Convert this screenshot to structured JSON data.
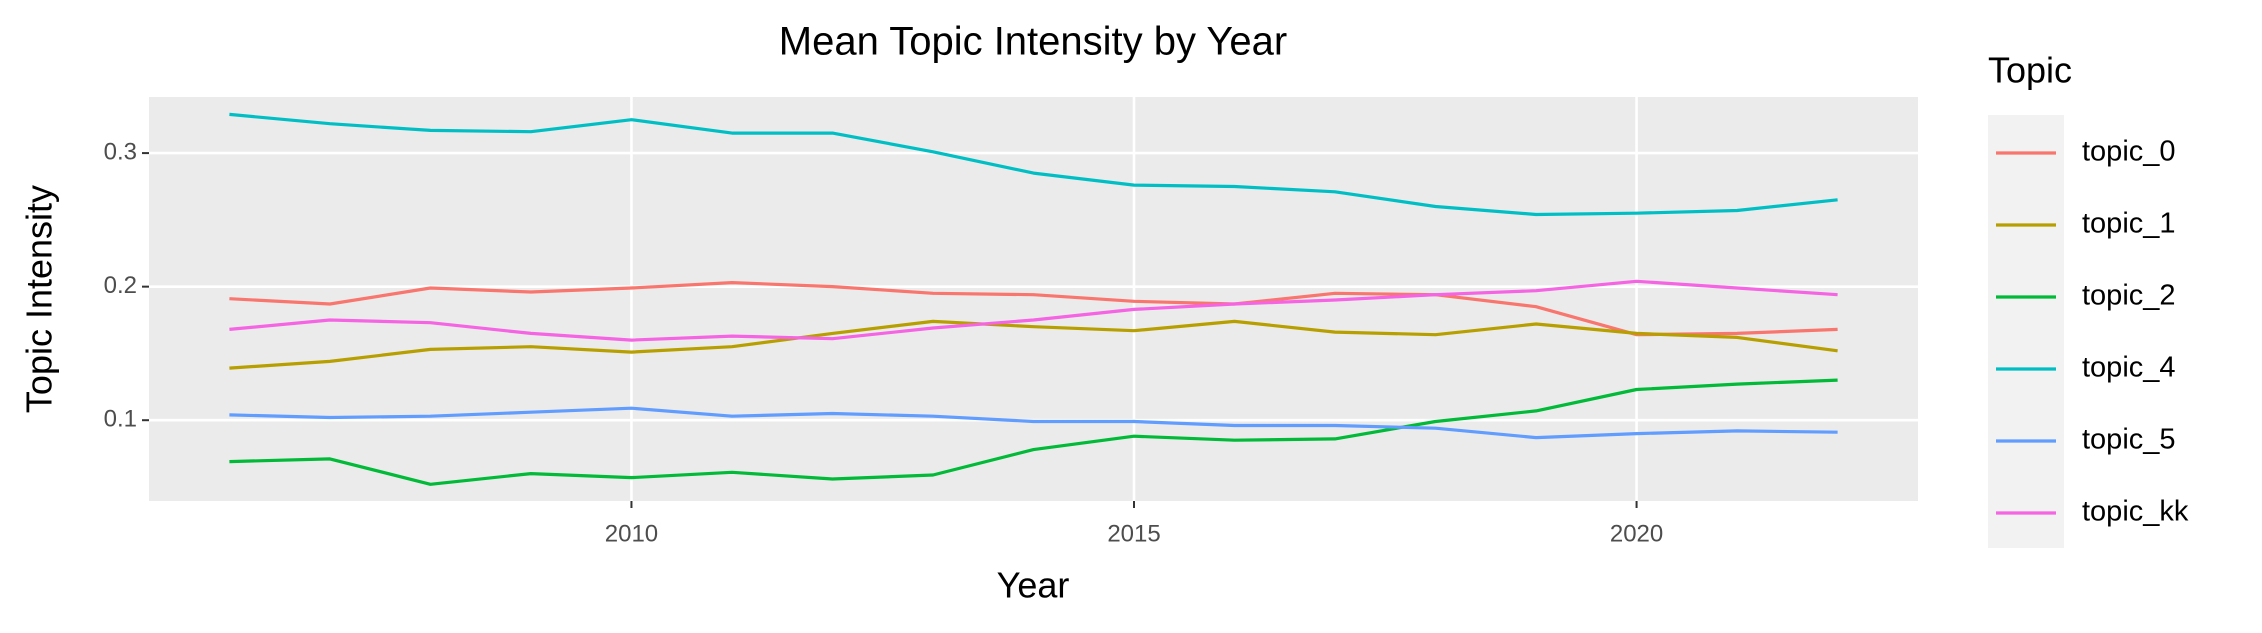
{
  "chart_data": {
    "type": "line",
    "title": "Mean Topic Intensity by Year",
    "x_label": "Year",
    "y_label": "Topic Intensity",
    "legend_title": "Topic",
    "x": [
      2006,
      2007,
      2008,
      2009,
      2010,
      2011,
      2012,
      2013,
      2014,
      2015,
      2016,
      2017,
      2018,
      2019,
      2020,
      2021,
      2022
    ],
    "series": [
      {
        "name": "topic_0",
        "color": "#F8766D",
        "values": [
          0.191,
          0.187,
          0.199,
          0.196,
          0.199,
          0.203,
          0.2,
          0.195,
          0.194,
          0.189,
          0.187,
          0.195,
          0.194,
          0.185,
          0.164,
          0.165,
          0.168
        ]
      },
      {
        "name": "topic_1",
        "color": "#B79F00",
        "values": [
          0.139,
          0.144,
          0.153,
          0.155,
          0.151,
          0.155,
          0.165,
          0.174,
          0.17,
          0.167,
          0.174,
          0.166,
          0.164,
          0.172,
          0.165,
          0.162,
          0.152
        ]
      },
      {
        "name": "topic_2",
        "color": "#00BA38",
        "values": [
          0.069,
          0.071,
          0.052,
          0.06,
          0.057,
          0.061,
          0.056,
          0.059,
          0.078,
          0.088,
          0.085,
          0.086,
          0.099,
          0.107,
          0.123,
          0.127,
          0.13
        ]
      },
      {
        "name": "topic_4",
        "color": "#00BFC4",
        "values": [
          0.329,
          0.322,
          0.317,
          0.316,
          0.325,
          0.315,
          0.315,
          0.301,
          0.285,
          0.276,
          0.275,
          0.271,
          0.26,
          0.254,
          0.255,
          0.257,
          0.265
        ]
      },
      {
        "name": "topic_5",
        "color": "#619CFF",
        "values": [
          0.104,
          0.102,
          0.103,
          0.106,
          0.109,
          0.103,
          0.105,
          0.103,
          0.099,
          0.099,
          0.096,
          0.096,
          0.094,
          0.087,
          0.09,
          0.092,
          0.091
        ]
      },
      {
        "name": "topic_kk",
        "color": "#F564E3",
        "values": [
          0.168,
          0.175,
          0.173,
          0.165,
          0.16,
          0.163,
          0.161,
          0.169,
          0.175,
          0.183,
          0.187,
          0.19,
          0.194,
          0.197,
          0.204,
          0.199,
          0.194
        ]
      }
    ],
    "xlim": [
      2005.2,
      2022.8
    ],
    "xticks": [
      2010,
      2015,
      2020
    ],
    "ylim": [
      0.0395,
      0.342
    ],
    "yticks": [
      0.1,
      0.2,
      0.3
    ],
    "grid": true,
    "legend": "right"
  }
}
